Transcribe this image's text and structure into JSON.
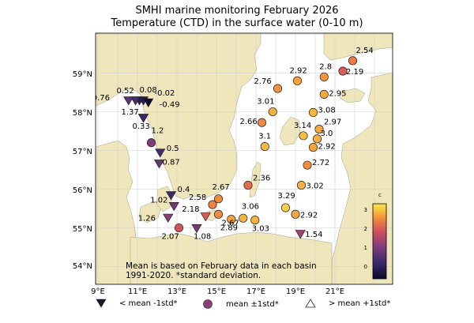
{
  "title": {
    "line1": "SMHI marine monitoring February 2026",
    "line2": "Temperature (CTD) in the surface water (0-10 m)"
  },
  "axes": {
    "lon_ticks": [
      "9°E",
      "11°E",
      "13°E",
      "15°E",
      "17°E",
      "19°E",
      "21°E"
    ],
    "lat_ticks": [
      "59°N",
      "58°N",
      "57°N",
      "56°N",
      "55°N",
      "54°N"
    ],
    "lon_range": [
      9,
      24
    ],
    "lat_range": [
      53.5,
      60
    ]
  },
  "colorbar": {
    "title": "c",
    "ticks": [
      "3",
      "2",
      "1",
      "0"
    ],
    "range": [
      -0.5,
      3.5
    ]
  },
  "note": {
    "line1": "Mean is based on February data in each basin",
    "line2": "1991-2020. *standard deviation."
  },
  "legend": {
    "below": "< mean -1std*",
    "within": "mean ±1std*",
    "above": "> mean +1std*"
  },
  "colors": {
    "land": "#f0e6bc",
    "sea": "#ffffff",
    "grid": "#d0d0d0",
    "marker_edge": "#222222"
  },
  "stations": [
    {
      "label": "0.08",
      "v": 0.08,
      "m": "down",
      "lon": 11.1,
      "lat": 58.3
    },
    {
      "label": "0.52",
      "v": 0.52,
      "m": "down",
      "lon": 10.9,
      "lat": 58.3
    },
    {
      "label": "0.76",
      "v": 0.76,
      "m": "down",
      "lon": 10.55,
      "lat": 58.3
    },
    {
      "label": "-0.02",
      "v": -0.02,
      "m": "down",
      "lon": 11.3,
      "lat": 58.3
    },
    {
      "label": "-0.49",
      "v": -0.49,
      "m": "down",
      "lon": 11.55,
      "lat": 58.25
    },
    {
      "label": "1.37",
      "v": 1.37,
      "m": "down",
      "lon": 11.3,
      "lat": 57.85
    },
    {
      "label": "0.33",
      "v": 0.33,
      "m": "down",
      "lon": 11.3,
      "lat": 57.85
    },
    {
      "label": "1.2",
      "v": 1.2,
      "m": "circle",
      "lon": 11.7,
      "lat": 57.2
    },
    {
      "label": "0.5",
      "v": 0.5,
      "m": "down",
      "lon": 12.15,
      "lat": 56.95
    },
    {
      "label": "0.87",
      "v": 0.87,
      "m": "down",
      "lon": 12.1,
      "lat": 56.67
    },
    {
      "label": "0.4",
      "v": 0.4,
      "m": "down",
      "lon": 12.7,
      "lat": 55.85
    },
    {
      "label": "1.02",
      "v": 1.02,
      "m": "down",
      "lon": 12.85,
      "lat": 55.57
    },
    {
      "label": "1.26",
      "v": 1.26,
      "m": "down",
      "lon": 12.55,
      "lat": 55.27
    },
    {
      "label": "2.07",
      "v": 2.07,
      "m": "circle",
      "lon": 13.1,
      "lat": 55.0
    },
    {
      "label": "1.08",
      "v": 1.08,
      "m": "down",
      "lon": 14.0,
      "lat": 55.0
    },
    {
      "label": "2.18",
      "v": 2.18,
      "m": "down",
      "lon": 14.45,
      "lat": 55.3
    },
    {
      "label": "2.58",
      "v": 2.58,
      "m": "circle",
      "lon": 14.8,
      "lat": 55.6
    },
    {
      "label": "2.67",
      "v": 2.67,
      "m": "circle",
      "lon": 15.1,
      "lat": 55.75
    },
    {
      "label": "2.67",
      "v": 2.67,
      "m": "circle",
      "lon": 15.1,
      "lat": 55.35
    },
    {
      "label": "2.89",
      "v": 2.89,
      "m": "circle",
      "lon": 15.75,
      "lat": 55.22
    },
    {
      "label": "3.06",
      "v": 3.06,
      "m": "circle",
      "lon": 16.35,
      "lat": 55.25
    },
    {
      "label": "3.03",
      "v": 3.03,
      "m": "circle",
      "lon": 16.95,
      "lat": 55.2
    },
    {
      "label": "2.36",
      "v": 2.36,
      "m": "circle",
      "lon": 16.6,
      "lat": 56.1
    },
    {
      "label": "3.29",
      "v": 3.29,
      "m": "circle",
      "lon": 18.5,
      "lat": 55.52
    },
    {
      "label": "2.92",
      "v": 2.92,
      "m": "circle",
      "lon": 19.0,
      "lat": 55.35
    },
    {
      "label": "1.54",
      "v": 1.54,
      "m": "down",
      "lon": 19.25,
      "lat": 54.85
    },
    {
      "label": "3.02",
      "v": 3.02,
      "m": "circle",
      "lon": 19.3,
      "lat": 56.1
    },
    {
      "label": "2.72",
      "v": 2.72,
      "m": "circle",
      "lon": 19.6,
      "lat": 56.62
    },
    {
      "label": "2.92",
      "v": 2.92,
      "m": "circle",
      "lon": 19.9,
      "lat": 57.08
    },
    {
      "label": "3.0",
      "v": 3.0,
      "m": "circle",
      "lon": 20.1,
      "lat": 57.3
    },
    {
      "label": "2.97",
      "v": 2.97,
      "m": "circle",
      "lon": 20.2,
      "lat": 57.55
    },
    {
      "label": "3.14",
      "v": 3.14,
      "m": "circle",
      "lon": 19.4,
      "lat": 57.38
    },
    {
      "label": "3.1",
      "v": 3.1,
      "m": "circle",
      "lon": 17.45,
      "lat": 57.1
    },
    {
      "label": "2.66",
      "v": 2.66,
      "m": "circle",
      "lon": 17.3,
      "lat": 57.72
    },
    {
      "label": "3.01",
      "v": 3.01,
      "m": "circle",
      "lon": 17.85,
      "lat": 58.0
    },
    {
      "label": "3.08",
      "v": 3.08,
      "m": "circle",
      "lon": 19.9,
      "lat": 57.98
    },
    {
      "label": "2.76",
      "v": 2.76,
      "m": "circle",
      "lon": 18.1,
      "lat": 58.6
    },
    {
      "label": "2.92",
      "v": 2.92,
      "m": "circle",
      "lon": 19.1,
      "lat": 58.8
    },
    {
      "label": "2.8",
      "v": 2.8,
      "m": "circle",
      "lon": 20.45,
      "lat": 58.9
    },
    {
      "label": "2.95",
      "v": 2.95,
      "m": "circle",
      "lon": 20.45,
      "lat": 58.45
    },
    {
      "label": "2.54",
      "v": 2.54,
      "m": "circle",
      "lon": 21.9,
      "lat": 59.32
    },
    {
      "label": "2.19",
      "v": 2.19,
      "m": "circle",
      "lon": 21.4,
      "lat": 59.05
    }
  ]
}
